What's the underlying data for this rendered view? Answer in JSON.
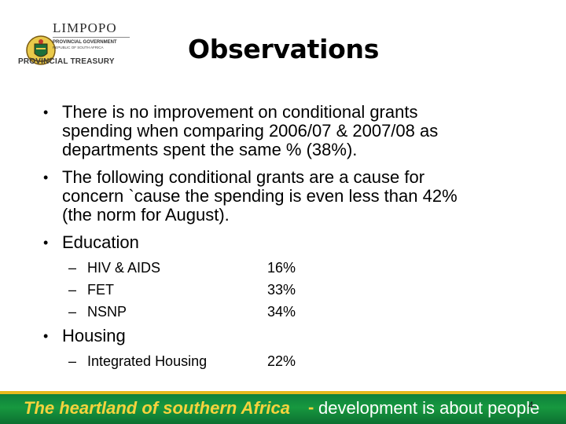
{
  "logo": {
    "name": "LIMPOPO",
    "sub1": "PROVINCIAL GOVERNMENT",
    "sub2": "REPUBLIC OF SOUTH AFRICA",
    "department": "PROVINCIAL TREASURY"
  },
  "title": "Observations",
  "bullets": [
    {
      "lines": [
        "There is no improvement on conditional grants",
        "spending when comparing 2006/07 & 2007/08 as",
        "departments spent the same % (38%)."
      ]
    },
    {
      "lines": [
        "The following conditional grants are a cause for",
        "concern `cause the spending is even less than 42%",
        "(the norm for August)."
      ]
    },
    {
      "lines": [
        "Education"
      ]
    },
    {
      "lines": [
        "Housing"
      ]
    }
  ],
  "education_items": [
    {
      "label": "HIV & AIDS",
      "value": "16%"
    },
    {
      "label": "FET",
      "value": "33%"
    },
    {
      "label": "NSNP",
      "value": "34%"
    }
  ],
  "housing_items": [
    {
      "label": "Integrated Housing",
      "value": "22%"
    }
  ],
  "footer": {
    "slogan_part1": "The heartland of southern Africa",
    "separator": "-",
    "slogan_part2": "development is about people"
  },
  "page_number": "4",
  "colors": {
    "footer_green": "#17983f",
    "footer_gold": "#f6d23d"
  }
}
